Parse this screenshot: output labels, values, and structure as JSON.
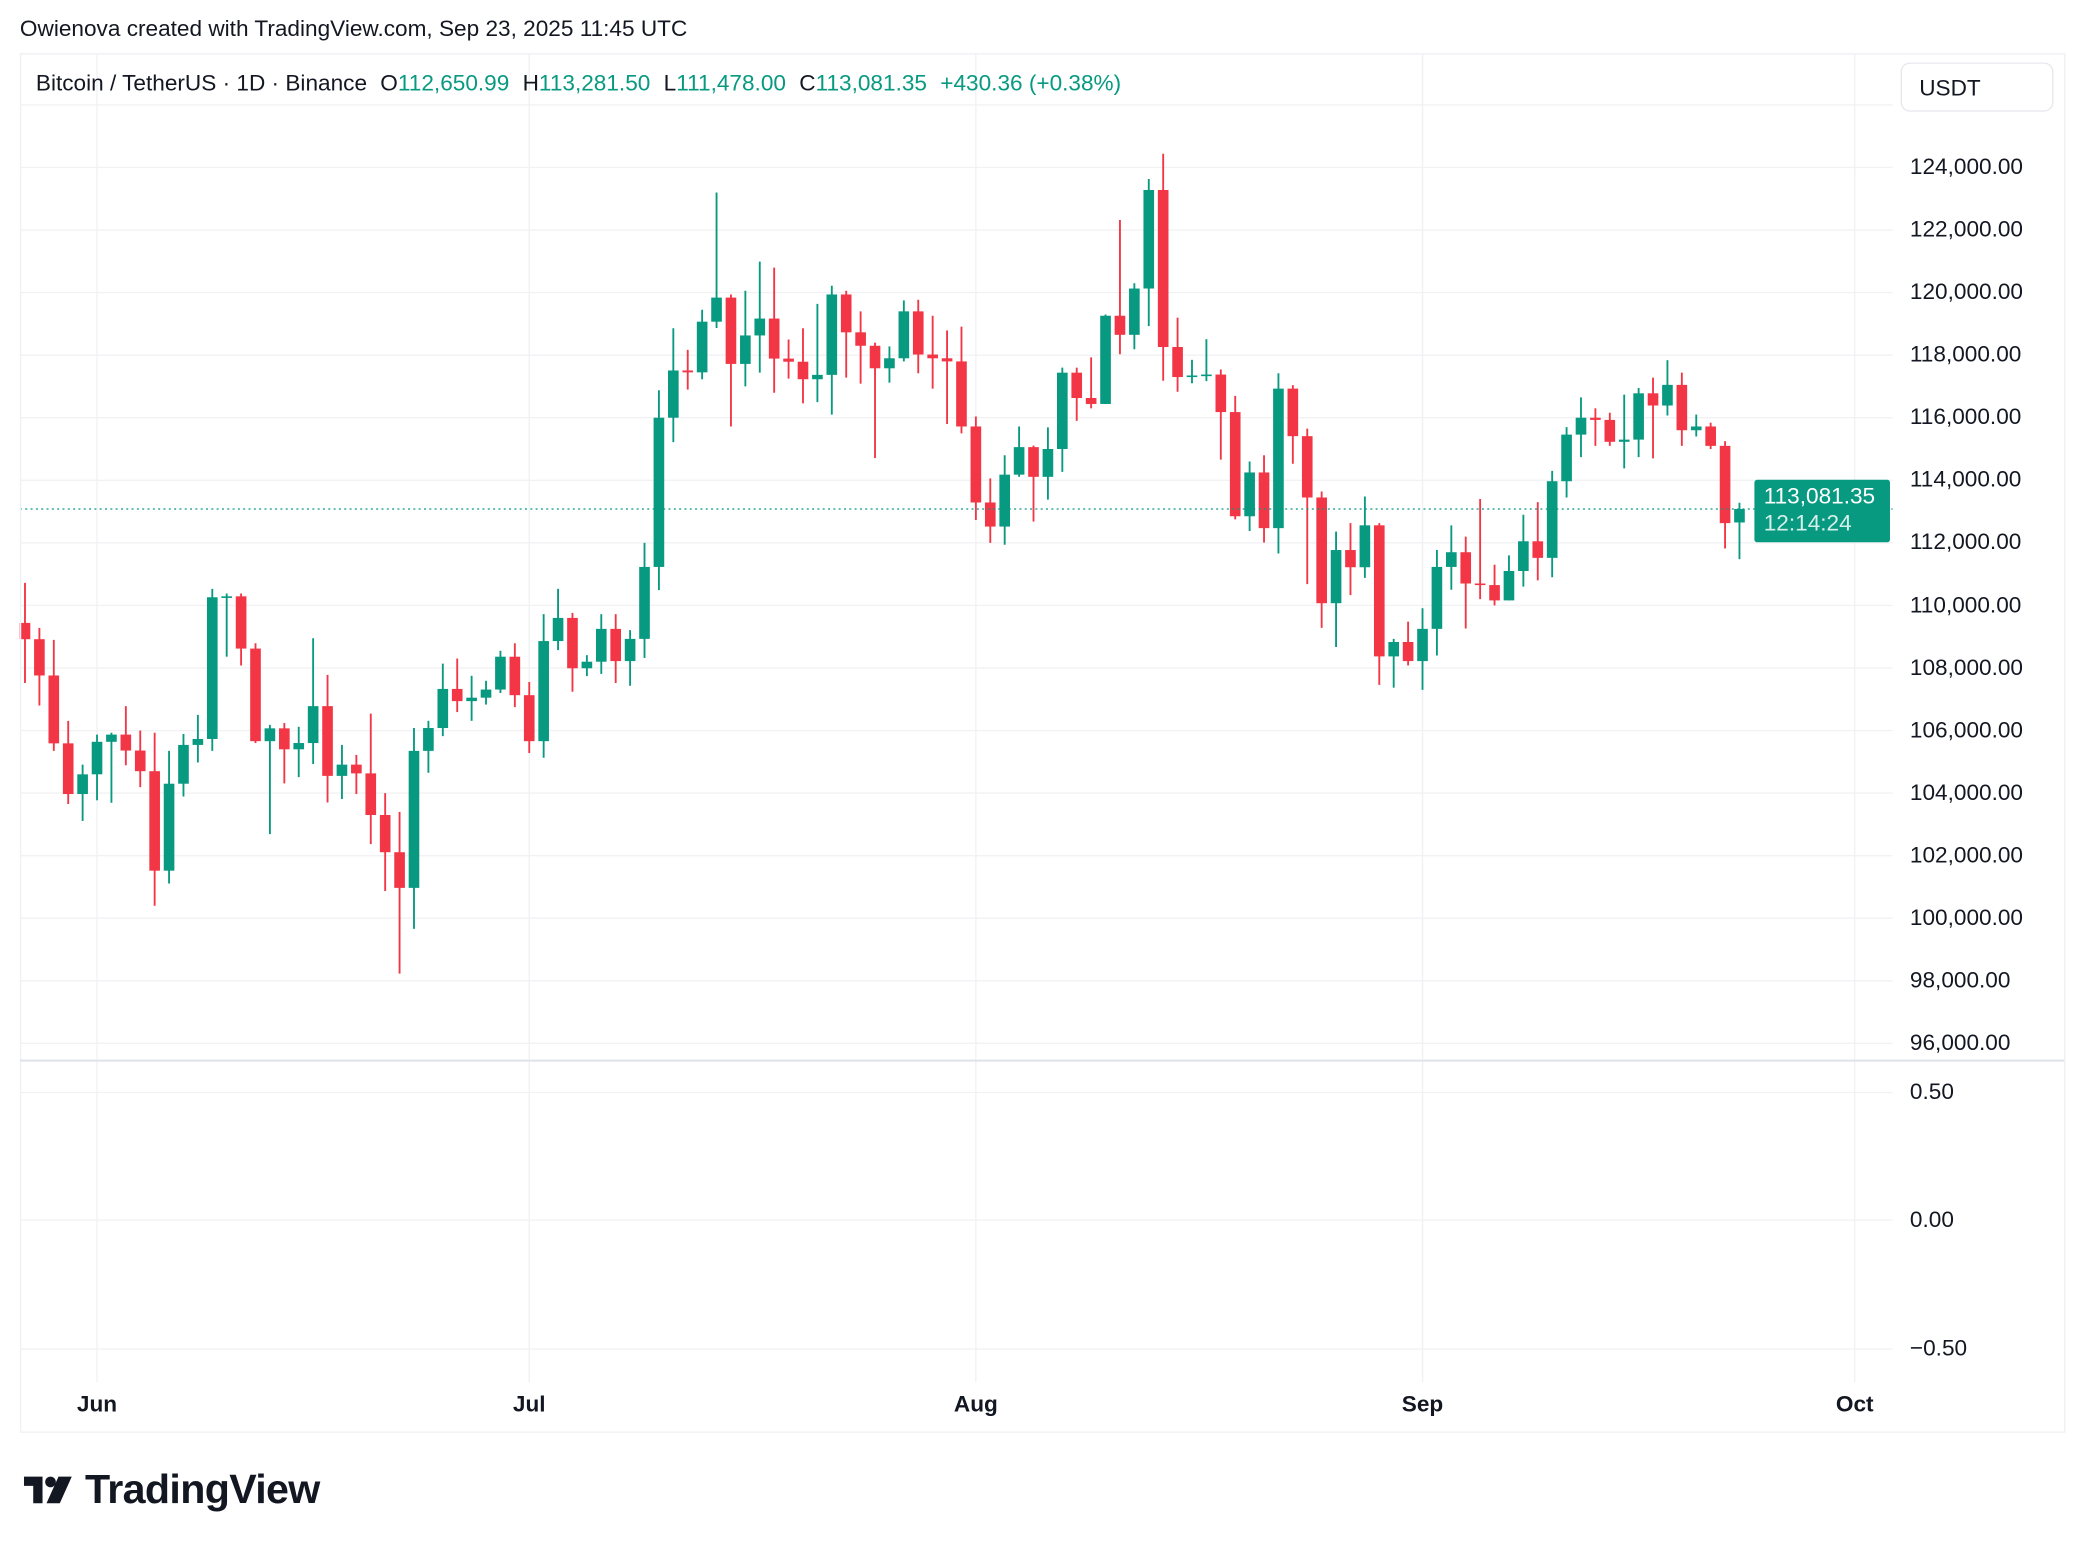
{
  "caption": "Owienova created with TradingView.com, Sep 23, 2025 11:45 UTC",
  "legend": {
    "symbol": "Bitcoin / TetherUS · 1D · Binance",
    "open_label": "O",
    "open": "112,650.99",
    "high_label": "H",
    "high": "113,281.50",
    "low_label": "L",
    "low": "111,478.00",
    "close_label": "C",
    "close": "113,081.35",
    "change": "+430.36 (+0.38%)"
  },
  "currency": "USDT",
  "last_price": {
    "price": "113,081.35",
    "countdown": "12:14:24"
  },
  "indicator_axis": [
    "0.50",
    "0.00",
    "−0.50"
  ],
  "logo": {
    "text": "TradingView"
  },
  "colors": {
    "up": "#089981",
    "down": "#f23645",
    "grid": "#f2f2f4",
    "text": "#131722"
  },
  "chart_data": {
    "type": "candlestick",
    "ylabel": "",
    "ylim": [
      96000,
      124000
    ],
    "y_ticks": [
      "124,000.00",
      "122,000.00",
      "120,000.00",
      "118,000.00",
      "116,000.00",
      "114,000.00",
      "112,000.00",
      "110,000.00",
      "108,000.00",
      "106,000.00",
      "104,000.00",
      "102,000.00",
      "100,000.00",
      "98,000.00",
      "96,000.00"
    ],
    "x_ticks": [
      {
        "label": "Jun",
        "date": "2025-06-01"
      },
      {
        "label": "Jul",
        "date": "2025-07-01"
      },
      {
        "label": "Aug",
        "date": "2025-08-01"
      },
      {
        "label": "Sep",
        "date": "2025-09-01"
      },
      {
        "label": "Oct",
        "date": "2025-10-01"
      }
    ],
    "grid": true,
    "columns": [
      "date",
      "open",
      "high",
      "low",
      "close"
    ],
    "candles": [
      [
        "2025-05-27",
        109440,
        110720,
        107520,
        108920
      ],
      [
        "2025-05-28",
        108920,
        109280,
        106800,
        107760
      ],
      [
        "2025-05-29",
        107760,
        108900,
        105350,
        105590
      ],
      [
        "2025-05-30",
        105590,
        106310,
        103650,
        103970
      ],
      [
        "2025-05-31",
        103970,
        104910,
        103110,
        104600
      ],
      [
        "2025-06-01",
        104600,
        105870,
        103770,
        105640
      ],
      [
        "2025-06-02",
        105640,
        105930,
        103690,
        105870
      ],
      [
        "2025-06-03",
        105870,
        106780,
        104890,
        105360
      ],
      [
        "2025-06-04",
        105360,
        106000,
        104190,
        104700
      ],
      [
        "2025-06-05",
        104700,
        105930,
        100400,
        101520
      ],
      [
        "2025-06-06",
        101520,
        105350,
        101110,
        104300
      ],
      [
        "2025-06-07",
        104300,
        105890,
        103890,
        105540
      ],
      [
        "2025-06-08",
        105540,
        106500,
        104980,
        105730
      ],
      [
        "2025-06-09",
        105730,
        110530,
        105350,
        110260
      ],
      [
        "2025-06-10",
        110260,
        110380,
        108360,
        110290
      ],
      [
        "2025-06-11",
        110290,
        110380,
        108080,
        108620
      ],
      [
        "2025-06-12",
        108620,
        108790,
        105600,
        105660
      ],
      [
        "2025-06-13",
        105660,
        106180,
        102690,
        106070
      ],
      [
        "2025-06-14",
        106070,
        106240,
        104310,
        105400
      ],
      [
        "2025-06-15",
        105400,
        106120,
        104510,
        105600
      ],
      [
        "2025-06-16",
        105600,
        108950,
        104930,
        106780
      ],
      [
        "2025-06-17",
        106780,
        107780,
        103700,
        104550
      ],
      [
        "2025-06-18",
        104550,
        105540,
        103810,
        104910
      ],
      [
        "2025-06-19",
        104910,
        105220,
        103970,
        104630
      ],
      [
        "2025-06-20",
        104630,
        106540,
        102370,
        103300
      ],
      [
        "2025-06-21",
        103300,
        104000,
        100870,
        102110
      ],
      [
        "2025-06-22",
        102110,
        103400,
        98230,
        100970
      ],
      [
        "2025-06-23",
        100970,
        106080,
        99660,
        105350
      ],
      [
        "2025-06-24",
        105350,
        106310,
        104650,
        106080
      ],
      [
        "2025-06-25",
        106080,
        108140,
        105820,
        107330
      ],
      [
        "2025-06-26",
        107330,
        108300,
        106590,
        106940
      ],
      [
        "2025-06-27",
        106940,
        107750,
        106310,
        107050
      ],
      [
        "2025-06-28",
        107050,
        107590,
        106830,
        107310
      ],
      [
        "2025-06-29",
        107310,
        108550,
        107200,
        108360
      ],
      [
        "2025-06-30",
        108360,
        108790,
        106750,
        107130
      ],
      [
        "2025-07-01",
        107130,
        107550,
        105280,
        105660
      ],
      [
        "2025-07-02",
        105660,
        109720,
        105130,
        108860
      ],
      [
        "2025-07-03",
        108860,
        110530,
        108570,
        109600
      ],
      [
        "2025-07-04",
        109600,
        109760,
        107240,
        107990
      ],
      [
        "2025-07-05",
        107990,
        108410,
        107740,
        108200
      ],
      [
        "2025-07-06",
        108200,
        109720,
        107810,
        109250
      ],
      [
        "2025-07-07",
        109250,
        109720,
        107520,
        108220
      ],
      [
        "2025-07-08",
        108220,
        109210,
        107430,
        108930
      ],
      [
        "2025-07-09",
        108930,
        112000,
        108320,
        111230
      ],
      [
        "2025-07-10",
        111230,
        116880,
        110490,
        116000
      ],
      [
        "2025-07-11",
        116000,
        118860,
        115220,
        117510
      ],
      [
        "2025-07-12",
        117510,
        118170,
        116900,
        117450
      ],
      [
        "2025-07-13",
        117450,
        119450,
        117230,
        119070
      ],
      [
        "2025-07-14",
        119070,
        123200,
        118870,
        119840
      ],
      [
        "2025-07-15",
        119840,
        119940,
        115720,
        117720
      ],
      [
        "2025-07-16",
        117720,
        120060,
        117000,
        118630
      ],
      [
        "2025-07-17",
        118630,
        120990,
        117440,
        119170
      ],
      [
        "2025-07-18",
        119170,
        120800,
        116800,
        117890
      ],
      [
        "2025-07-19",
        117890,
        118500,
        117250,
        117790
      ],
      [
        "2025-07-20",
        117790,
        118860,
        116460,
        117230
      ],
      [
        "2025-07-21",
        117230,
        119640,
        116500,
        117370
      ],
      [
        "2025-07-22",
        117370,
        120220,
        116100,
        119940
      ],
      [
        "2025-07-23",
        119940,
        120060,
        117280,
        118730
      ],
      [
        "2025-07-24",
        118730,
        119400,
        117090,
        118300
      ],
      [
        "2025-07-25",
        118300,
        118400,
        114710,
        117580
      ],
      [
        "2025-07-26",
        117580,
        118280,
        117120,
        117900
      ],
      [
        "2025-07-27",
        117900,
        119750,
        117800,
        119400
      ],
      [
        "2025-07-28",
        119400,
        119770,
        117420,
        118020
      ],
      [
        "2025-07-29",
        118020,
        119260,
        116930,
        117900
      ],
      [
        "2025-07-30",
        117900,
        118790,
        115800,
        117800
      ],
      [
        "2025-07-31",
        117800,
        118910,
        115500,
        115720
      ],
      [
        "2025-08-01",
        115720,
        116040,
        112730,
        113290
      ],
      [
        "2025-08-02",
        113290,
        114060,
        112000,
        112520
      ],
      [
        "2025-08-03",
        112520,
        114800,
        111940,
        114180
      ],
      [
        "2025-08-04",
        114180,
        115720,
        114110,
        115060
      ],
      [
        "2025-08-05",
        115060,
        115110,
        112680,
        114110
      ],
      [
        "2025-08-06",
        114110,
        115690,
        113380,
        115000
      ],
      [
        "2025-08-07",
        115000,
        117600,
        114270,
        117440
      ],
      [
        "2025-08-08",
        117440,
        117600,
        115900,
        116630
      ],
      [
        "2025-08-09",
        116630,
        117930,
        116300,
        116440
      ],
      [
        "2025-08-10",
        116440,
        119300,
        116440,
        119260
      ],
      [
        "2025-08-11",
        119260,
        122320,
        118030,
        118650
      ],
      [
        "2025-08-12",
        118650,
        120300,
        118190,
        120130
      ],
      [
        "2025-08-13",
        120130,
        123630,
        118930,
        123280
      ],
      [
        "2025-08-14",
        123280,
        124440,
        117180,
        118260
      ],
      [
        "2025-08-15",
        118260,
        119200,
        116830,
        117300
      ],
      [
        "2025-08-16",
        117300,
        117850,
        117100,
        117350
      ],
      [
        "2025-08-17",
        117350,
        118510,
        117170,
        117380
      ],
      [
        "2025-08-18",
        117380,
        117540,
        114660,
        116180
      ],
      [
        "2025-08-19",
        116180,
        116700,
        112750,
        112850
      ],
      [
        "2025-08-20",
        112850,
        114600,
        112380,
        114250
      ],
      [
        "2025-08-21",
        114250,
        114800,
        112010,
        112470
      ],
      [
        "2025-08-22",
        112470,
        117420,
        111660,
        116930
      ],
      [
        "2025-08-23",
        116930,
        117040,
        114530,
        115410
      ],
      [
        "2025-08-24",
        115410,
        115650,
        110680,
        113450
      ],
      [
        "2025-08-25",
        113450,
        113640,
        109280,
        110070
      ],
      [
        "2025-08-26",
        110070,
        112360,
        108670,
        111770
      ],
      [
        "2025-08-27",
        111770,
        112630,
        110330,
        111220
      ],
      [
        "2025-08-28",
        111220,
        113480,
        110880,
        112560
      ],
      [
        "2025-08-29",
        112560,
        112630,
        107460,
        108370
      ],
      [
        "2025-08-30",
        108370,
        108930,
        107370,
        108830
      ],
      [
        "2025-08-31",
        108830,
        109480,
        108080,
        108220
      ],
      [
        "2025-09-01",
        108220,
        109910,
        107300,
        109250
      ],
      [
        "2025-09-02",
        109250,
        111770,
        108400,
        111230
      ],
      [
        "2025-09-03",
        111230,
        112560,
        110500,
        111700
      ],
      [
        "2025-09-04",
        111700,
        112200,
        109260,
        110700
      ],
      [
        "2025-09-05",
        110700,
        113400,
        110200,
        110650
      ],
      [
        "2025-09-06",
        110650,
        111300,
        110000,
        110160
      ],
      [
        "2025-09-07",
        110160,
        111600,
        110160,
        111100
      ],
      [
        "2025-09-08",
        111100,
        112900,
        110600,
        112050
      ],
      [
        "2025-09-09",
        112050,
        113300,
        110800,
        111520
      ],
      [
        "2025-09-10",
        111520,
        114300,
        110900,
        113970
      ],
      [
        "2025-09-11",
        113970,
        115700,
        113450,
        115460
      ],
      [
        "2025-09-12",
        115460,
        116650,
        114740,
        116000
      ],
      [
        "2025-09-13",
        116000,
        116300,
        115100,
        115930
      ],
      [
        "2025-09-14",
        115930,
        116160,
        115100,
        115230
      ],
      [
        "2025-09-15",
        115230,
        116740,
        114380,
        115300
      ],
      [
        "2025-09-16",
        115300,
        116950,
        114740,
        116780
      ],
      [
        "2025-09-17",
        116780,
        117280,
        114700,
        116390
      ],
      [
        "2025-09-18",
        116390,
        117840,
        116070,
        117050
      ],
      [
        "2025-09-19",
        117050,
        117440,
        115100,
        115600
      ],
      [
        "2025-09-20",
        115600,
        116100,
        115400,
        115720
      ],
      [
        "2025-09-21",
        115720,
        115840,
        115000,
        115100
      ],
      [
        "2025-09-22",
        115100,
        115250,
        111820,
        112630
      ],
      [
        "2025-09-23",
        112650.99,
        113281.5,
        111478,
        113081.35
      ]
    ],
    "last_close": 113081.35
  }
}
